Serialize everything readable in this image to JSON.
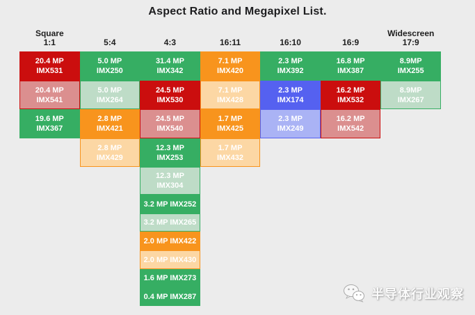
{
  "title": "Aspect Ratio and Megapixel List.",
  "watermark": {
    "icon": "wechat-icon",
    "text": "半导体行业观察"
  },
  "colors": {
    "background": "#ececec",
    "text_dark": "#1d1d1f",
    "cell_text": "#ffffff",
    "green": "#36ae63",
    "green_light": "#bedcc7",
    "red": "#cb0e0e",
    "red_light": "#db8f8f",
    "orange": "#f8941d",
    "orange_light": "#fcd7a4",
    "blue": "#5561f0",
    "blue_light": "#aab3f5"
  },
  "chart_data": {
    "type": "table",
    "title": "Aspect Ratio and Megapixel List.",
    "layout_note": "7 aspect-ratio columns; each column stacks sensor cells top-down; light shades carry a border of the matching saturated color",
    "columns": [
      {
        "header": {
          "top": "Square",
          "label": "1:1"
        },
        "cells": [
          {
            "lines": [
              "20.4 MP",
              "IMX531"
            ],
            "color": "red"
          },
          {
            "lines": [
              "20.4 MP",
              "IMX541"
            ],
            "color": "red_light"
          },
          {
            "lines": [
              "19.6 MP",
              "IMX367"
            ],
            "color": "green"
          }
        ]
      },
      {
        "header": {
          "label": "5:4"
        },
        "cells": [
          {
            "lines": [
              "5.0 MP",
              "IMX250"
            ],
            "color": "green"
          },
          {
            "lines": [
              "5.0 MP",
              "IMX264"
            ],
            "color": "green_light"
          },
          {
            "lines": [
              "2.8 MP",
              "IMX421"
            ],
            "color": "orange"
          },
          {
            "lines": [
              "2.8 MP",
              "IMX429"
            ],
            "color": "orange_light"
          }
        ]
      },
      {
        "header": {
          "label": "4:3"
        },
        "cells": [
          {
            "lines": [
              "31.4 MP",
              "IMX342"
            ],
            "color": "green"
          },
          {
            "lines": [
              "24.5 MP",
              "IMX530"
            ],
            "color": "red"
          },
          {
            "lines": [
              "24.5 MP",
              "IMX540"
            ],
            "color": "red_light"
          },
          {
            "lines": [
              "12.3 MP",
              "IMX253"
            ],
            "color": "green"
          },
          {
            "lines": [
              "12.3 MP",
              "IMX304"
            ],
            "color": "green_light"
          },
          {
            "lines": [
              "3.2 MP IMX252"
            ],
            "color": "green"
          },
          {
            "lines": [
              "3.2 MP IMX265"
            ],
            "color": "green_light"
          },
          {
            "lines": [
              "2.0 MP IMX422"
            ],
            "color": "orange"
          },
          {
            "lines": [
              "2.0 MP IMX430"
            ],
            "color": "orange_light"
          },
          {
            "lines": [
              "1.6 MP IMX273"
            ],
            "color": "green"
          },
          {
            "lines": [
              "0.4 MP IMX287"
            ],
            "color": "green"
          }
        ]
      },
      {
        "header": {
          "label": "16:11"
        },
        "cells": [
          {
            "lines": [
              "7.1 MP",
              "IMX420"
            ],
            "color": "orange"
          },
          {
            "lines": [
              "7.1 MP",
              "IMX428"
            ],
            "color": "orange_light"
          },
          {
            "lines": [
              "1.7 MP",
              "IMX425"
            ],
            "color": "orange"
          },
          {
            "lines": [
              "1.7 MP",
              "IMX432"
            ],
            "color": "orange_light"
          }
        ]
      },
      {
        "header": {
          "label": "16:10"
        },
        "cells": [
          {
            "lines": [
              "2.3 MP",
              "IMX392"
            ],
            "color": "green"
          },
          {
            "lines": [
              "2.3 MP",
              "IMX174"
            ],
            "color": "blue"
          },
          {
            "lines": [
              "2.3 MP",
              "IMX249"
            ],
            "color": "blue_light"
          }
        ]
      },
      {
        "header": {
          "label": "16:9"
        },
        "cells": [
          {
            "lines": [
              "16.8 MP",
              "IMX387"
            ],
            "color": "green"
          },
          {
            "lines": [
              "16.2 MP",
              "IMX532"
            ],
            "color": "red"
          },
          {
            "lines": [
              "16.2 MP",
              "IMX542"
            ],
            "color": "red_light"
          }
        ]
      },
      {
        "header": {
          "top": "Widescreen",
          "label": "17:9"
        },
        "cells": [
          {
            "lines": [
              "8.9MP",
              "IMX255"
            ],
            "color": "green"
          },
          {
            "lines": [
              "8.9MP",
              "IMX267"
            ],
            "color": "green_light"
          }
        ]
      }
    ]
  }
}
